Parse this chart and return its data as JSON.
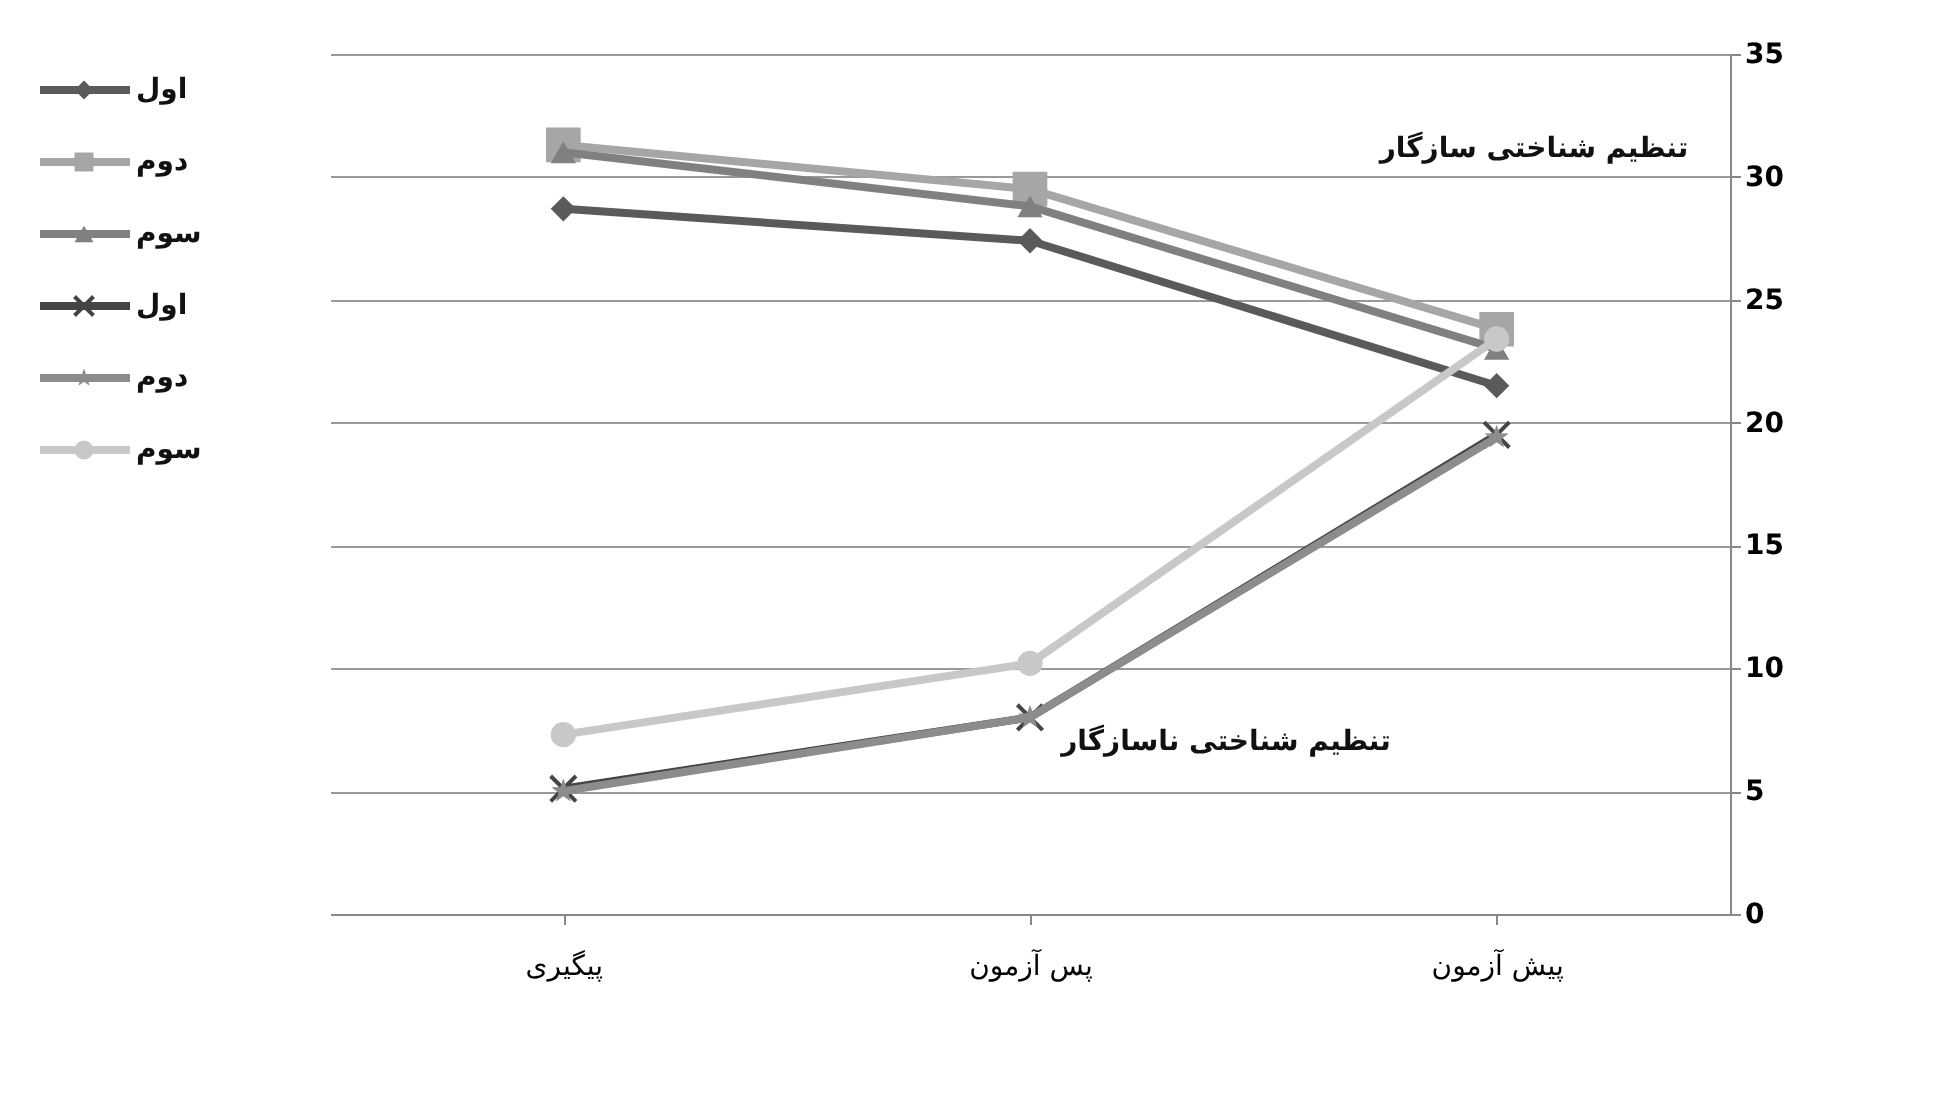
{
  "chart_data": {
    "type": "line",
    "categories": [
      "پیگیری",
      "پس آزمون",
      "پیش آزمون"
    ],
    "series": [
      {
        "name": "اول",
        "color": "#5a5a5a",
        "marker": "diamond",
        "values": [
          28.7,
          27.4,
          21.5
        ]
      },
      {
        "name": "دوم",
        "color": "#a6a6a6",
        "marker": "square",
        "values": [
          31.3,
          29.5,
          23.8
        ]
      },
      {
        "name": "سوم",
        "color": "#808080",
        "marker": "triangle",
        "values": [
          31.0,
          28.8,
          23.0
        ]
      },
      {
        "name": "اول",
        "color": "#454545",
        "marker": "cross",
        "values": [
          5.1,
          8.0,
          19.5
        ]
      },
      {
        "name": "دوم",
        "color": "#8c8c8c",
        "marker": "star",
        "values": [
          5.0,
          8.0,
          19.4
        ]
      },
      {
        "name": "سوم",
        "color": "#c8c8c8",
        "marker": "circle",
        "values": [
          7.3,
          10.2,
          23.4
        ]
      }
    ],
    "annotations": [
      "تنظیم شناختی سازگار",
      "تنظیم شناختی ناسازگار"
    ],
    "ylim": [
      0,
      35
    ],
    "yticks": [
      0,
      5,
      10,
      15,
      20,
      25,
      30,
      35
    ],
    "grid": "y",
    "legend": "left",
    "line_style": "solid"
  }
}
